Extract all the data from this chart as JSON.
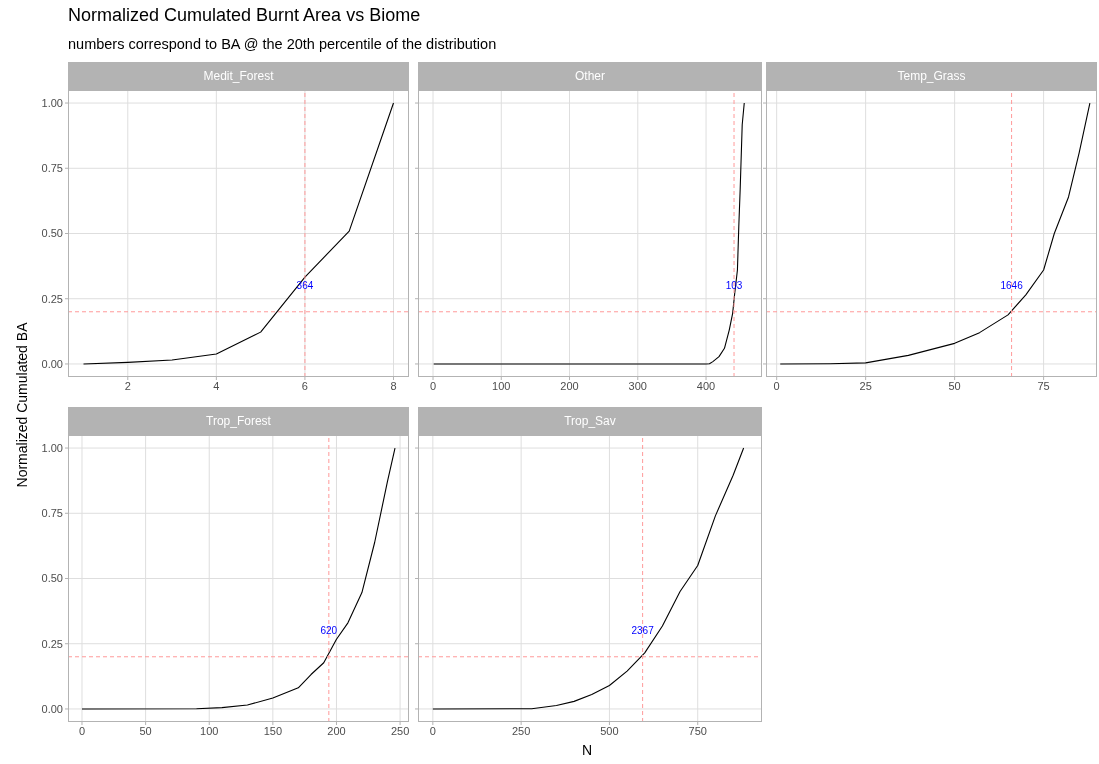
{
  "chart_data": [
    {
      "type": "line",
      "title": "Medit_Forest",
      "annotations": [
        "Normalized Cumulated Burnt Area vs Biome",
        "numbers correspond to BA @ the 20th percentile of the distribution",
        {
          "text": "364",
          "x": 6,
          "y": 0.3
        }
      ],
      "ylabel": "Normalized Cumulated BA",
      "grid": true,
      "xlim": [
        0.65,
        8.35
      ],
      "xticks": [
        2,
        4,
        6,
        8
      ],
      "ylim": [
        -0.05,
        1.05
      ],
      "yticks": [
        {
          "value": 0,
          "label": "0.00"
        },
        {
          "value": 0.25,
          "label": "0.25"
        },
        {
          "value": 0.5,
          "label": "0.50"
        },
        {
          "value": 0.75,
          "label": "0.75"
        },
        {
          "value": 1,
          "label": "1.00"
        }
      ],
      "series": [
        {
          "color": "#000000",
          "x": [
            1,
            2,
            3,
            4,
            5,
            6,
            7,
            8
          ],
          "values": [
            0,
            0.006,
            0.015,
            0.038,
            0.122,
            0.333,
            0.509,
            1
          ]
        }
      ],
      "ref_lines": [
        {
          "axis": "x",
          "value": 6,
          "color": "#ff9999",
          "line_style": "dashed"
        },
        {
          "axis": "y",
          "value": 0.2,
          "color": "#ff9999",
          "line_style": "dashed"
        }
      ]
    },
    {
      "type": "line",
      "title": "Other",
      "annotations": [
        {
          "text": "103",
          "x": 441,
          "y": 0.3
        }
      ],
      "grid": true,
      "tick_labels": "x",
      "xlim": [
        -22,
        482
      ],
      "xticks": [
        0,
        100,
        200,
        300,
        400
      ],
      "ylim": [
        -0.05,
        1.05
      ],
      "yticks": [
        0,
        0.25,
        0.5,
        0.75,
        1
      ],
      "series": [
        {
          "color": "#000000",
          "x": [
            1,
            400,
            405,
            410,
            419,
            427,
            434,
            439,
            442,
            446,
            448,
            450,
            453,
            456
          ],
          "values": [
            0,
            0,
            0.001,
            0.009,
            0.028,
            0.06,
            0.13,
            0.194,
            0.27,
            0.36,
            0.527,
            0.668,
            0.917,
            1
          ]
        }
      ],
      "ref_lines": [
        {
          "axis": "x",
          "value": 441,
          "color": "#ff9999",
          "line_style": "dashed"
        },
        {
          "axis": "y",
          "value": 0.2,
          "color": "#ff9999",
          "line_style": "dashed"
        }
      ]
    },
    {
      "type": "line",
      "title": "Temp_Grass",
      "annotations": [
        {
          "text": "1646",
          "x": 66,
          "y": 0.3
        }
      ],
      "grid": true,
      "tick_labels": "x",
      "xlim": [
        -3,
        90
      ],
      "xticks": [
        0,
        25,
        50,
        75
      ],
      "ylim": [
        -0.05,
        1.05
      ],
      "yticks": [
        0,
        0.25,
        0.5,
        0.75,
        1
      ],
      "series": [
        {
          "color": "#000000",
          "x": [
            1,
            15,
            25,
            37,
            50,
            57,
            65,
            70,
            75,
            78,
            82,
            85,
            88
          ],
          "values": [
            0,
            0.001,
            0.004,
            0.033,
            0.079,
            0.12,
            0.188,
            0.265,
            0.36,
            0.5,
            0.64,
            0.81,
            1
          ]
        }
      ],
      "ref_lines": [
        {
          "axis": "x",
          "value": 66,
          "color": "#ff9999",
          "line_style": "dashed"
        },
        {
          "axis": "y",
          "value": 0.2,
          "color": "#ff9999",
          "line_style": "dashed"
        }
      ]
    },
    {
      "type": "line",
      "title": "Trop_Forest",
      "annotations": [
        {
          "text": "620",
          "x": 194,
          "y": 0.3
        }
      ],
      "grid": true,
      "xlim": [
        -11,
        257
      ],
      "xticks": [
        0,
        50,
        100,
        150,
        200,
        250
      ],
      "ylim": [
        -0.05,
        1.05
      ],
      "yticks": [
        {
          "value": 0,
          "label": "0.00"
        },
        {
          "value": 0.25,
          "label": "0.25"
        },
        {
          "value": 0.5,
          "label": "0.50"
        },
        {
          "value": 0.75,
          "label": "0.75"
        },
        {
          "value": 1,
          "label": "1.00"
        }
      ],
      "series": [
        {
          "color": "#000000",
          "x": [
            0,
            90,
            110,
            130,
            150,
            170,
            180,
            190,
            200,
            209,
            220,
            230,
            240,
            246
          ],
          "values": [
            0,
            0.001,
            0.005,
            0.015,
            0.042,
            0.081,
            0.132,
            0.177,
            0.267,
            0.33,
            0.446,
            0.638,
            0.87,
            1
          ]
        }
      ],
      "ref_lines": [
        {
          "axis": "x",
          "value": 194,
          "color": "#ff9999",
          "line_style": "dashed"
        },
        {
          "axis": "y",
          "value": 0.2,
          "color": "#ff9999",
          "line_style": "dashed"
        }
      ]
    },
    {
      "type": "line",
      "title": "Trop_Sav",
      "xlabel": "N",
      "annotations": [
        {
          "text": "2367",
          "x": 594,
          "y": 0.3
        }
      ],
      "grid": true,
      "tick_labels": "x",
      "xlim": [
        -42,
        932
      ],
      "xticks": [
        0,
        250,
        500,
        750
      ],
      "ylim": [
        -0.05,
        1.05
      ],
      "yticks": [
        0,
        0.25,
        0.5,
        0.75,
        1
      ],
      "series": [
        {
          "color": "#000000",
          "x": [
            0,
            280,
            350,
            400,
            450,
            500,
            550,
            600,
            650,
            700,
            750,
            800,
            850,
            880
          ],
          "values": [
            0,
            0.001,
            0.013,
            0.029,
            0.055,
            0.09,
            0.145,
            0.215,
            0.318,
            0.45,
            0.55,
            0.74,
            0.895,
            1
          ]
        }
      ],
      "ref_lines": [
        {
          "axis": "x",
          "value": 594,
          "color": "#ff9999",
          "line_style": "dashed"
        },
        {
          "axis": "y",
          "value": 0.2,
          "color": "#ff9999",
          "line_style": "dashed"
        }
      ]
    }
  ]
}
